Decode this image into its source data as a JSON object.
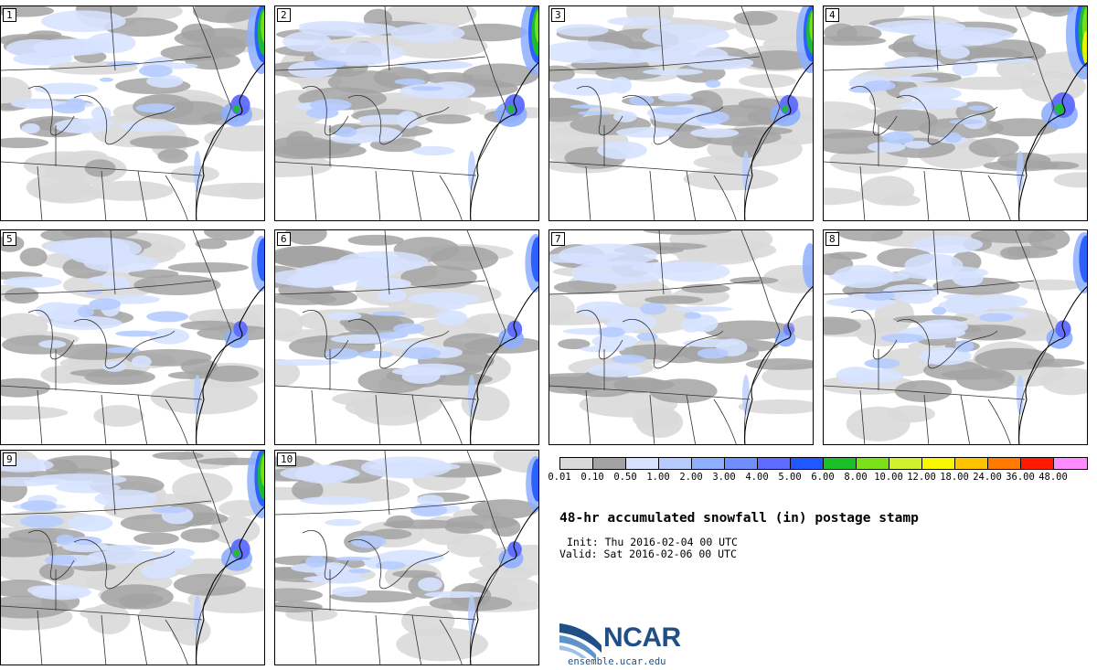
{
  "panels": [
    {
      "label": "1",
      "ne_intensity": 0.7
    },
    {
      "label": "2",
      "ne_intensity": 0.75
    },
    {
      "label": "3",
      "ne_intensity": 0.65
    },
    {
      "label": "4",
      "ne_intensity": 1.0
    },
    {
      "label": "5",
      "ne_intensity": 0.35
    },
    {
      "label": "6",
      "ne_intensity": 0.4
    },
    {
      "label": "7",
      "ne_intensity": 0.15
    },
    {
      "label": "8",
      "ne_intensity": 0.45
    },
    {
      "label": "9",
      "ne_intensity": 0.7
    },
    {
      "label": "10",
      "ne_intensity": 0.35
    }
  ],
  "colorbar": {
    "colors": [
      "#d9d9d9",
      "#a3a3a3",
      "#d6e2ff",
      "#b6ccff",
      "#8eafff",
      "#6f8fff",
      "#5d6bff",
      "#1f58ff",
      "#1bbf2a",
      "#7be21a",
      "#d2f02e",
      "#f8f600",
      "#ffc400",
      "#ff7a00",
      "#ff1a00",
      "#ff8cff"
    ],
    "ticks": [
      "0.01",
      "0.10",
      "0.50",
      "1.00",
      "2.00",
      "3.00",
      "4.00",
      "5.00",
      "6.00",
      "8.00",
      "10.00",
      "12.00",
      "18.00",
      "24.00",
      "36.00",
      "48.00"
    ]
  },
  "title": "48-hr accumulated snowfall (in) postage stamp",
  "init_label": "Init:",
  "init_value": "Thu 2016-02-04 00 UTC",
  "valid_label": "Valid:",
  "valid_value": "Sat 2016-02-06 00 UTC",
  "logo": {
    "name": "NCAR",
    "url": "ensemble.ucar.edu",
    "color": "#1f4f85"
  }
}
